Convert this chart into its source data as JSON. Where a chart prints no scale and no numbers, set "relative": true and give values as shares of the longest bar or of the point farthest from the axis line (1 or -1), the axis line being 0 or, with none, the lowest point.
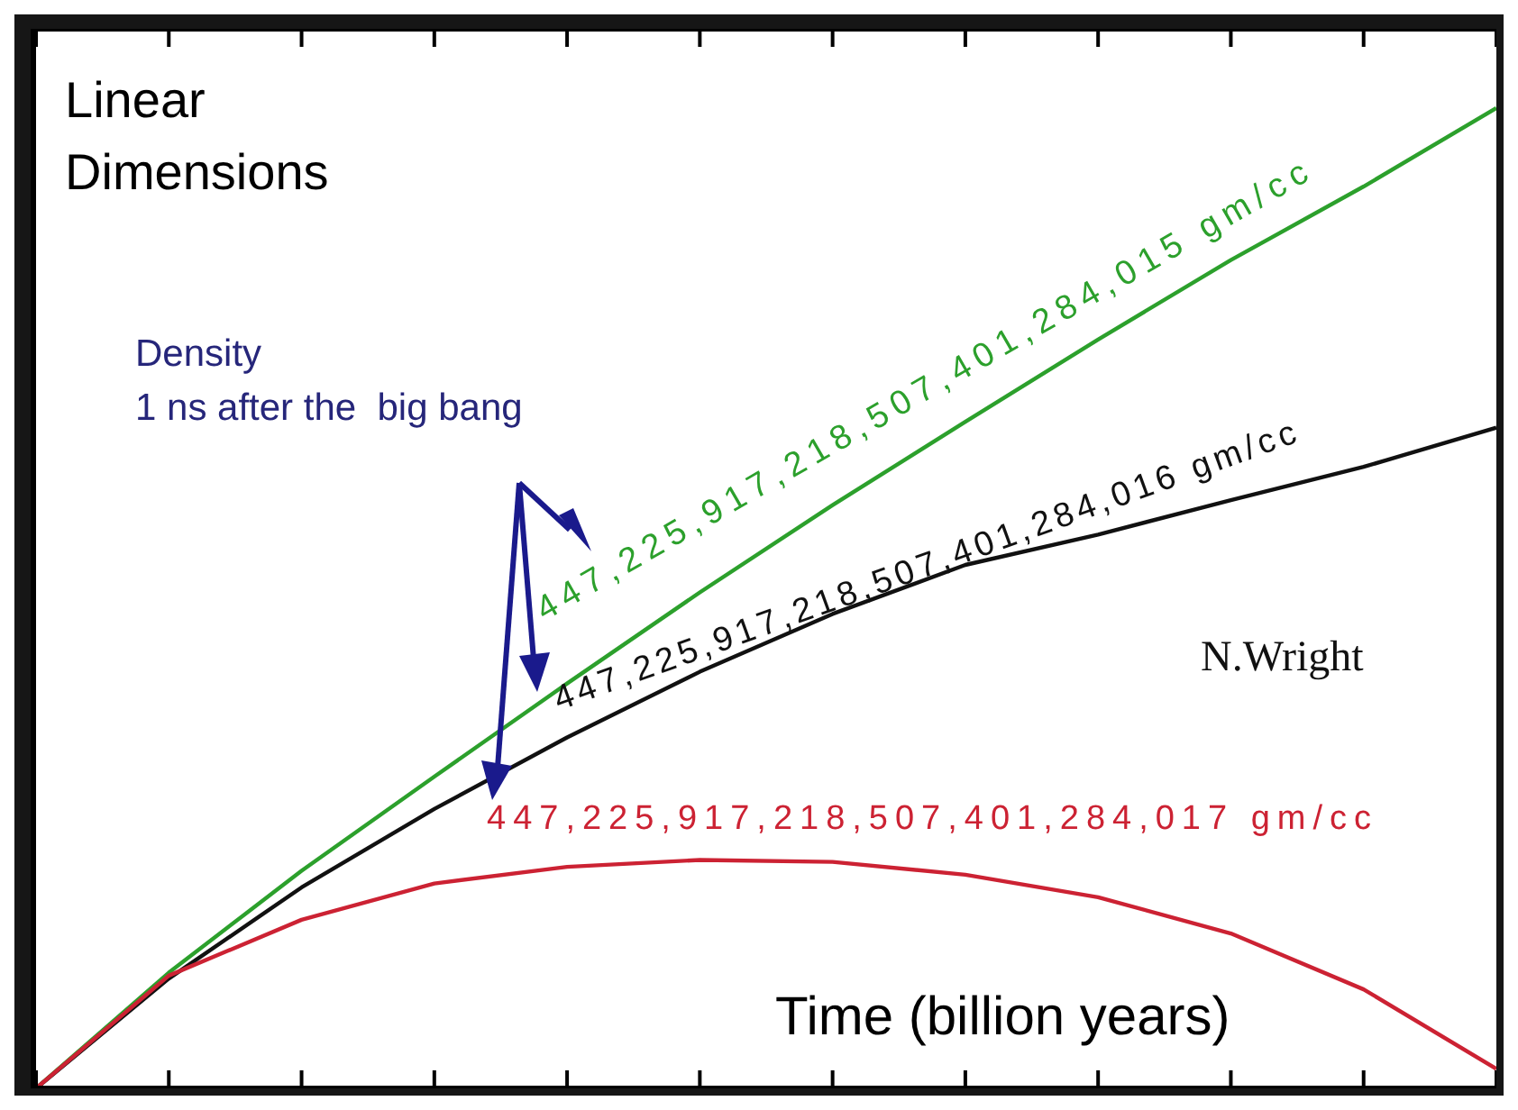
{
  "chart_data": {
    "type": "line",
    "relative": true,
    "ylabel": "Linear\nDimensions",
    "xlabel": "Time (billion years)",
    "categories": [
      null,
      null,
      null,
      null,
      null,
      null,
      null,
      null,
      null,
      null,
      null,
      null
    ],
    "series": [
      {
        "name": "447,225,917,218,507,401,284,015 gm/cc",
        "color": "#2ca02c",
        "values": [
          0,
          0.118,
          0.222,
          0.318,
          0.413,
          0.506,
          0.595,
          0.68,
          0.764,
          0.845,
          0.92,
          1
        ]
      },
      {
        "name": "447,225,917,218,507,401,284,016 gm/cc",
        "color": "#111111",
        "values": [
          0,
          0.112,
          0.205,
          0.285,
          0.358,
          0.425,
          0.484,
          0.534,
          0.565,
          0.6,
          0.634,
          0.674
        ]
      },
      {
        "name": "447,225,917,218,507,401,284,017 gm/cc",
        "color": "#cc2233",
        "values": [
          0,
          0.115,
          0.172,
          0.209,
          0.226,
          0.233,
          0.231,
          0.218,
          0.195,
          0.158,
          0.101,
          0.02
        ]
      }
    ],
    "annotations": [
      "Density\n1 ns after the  big bang",
      "N.Wright"
    ]
  }
}
